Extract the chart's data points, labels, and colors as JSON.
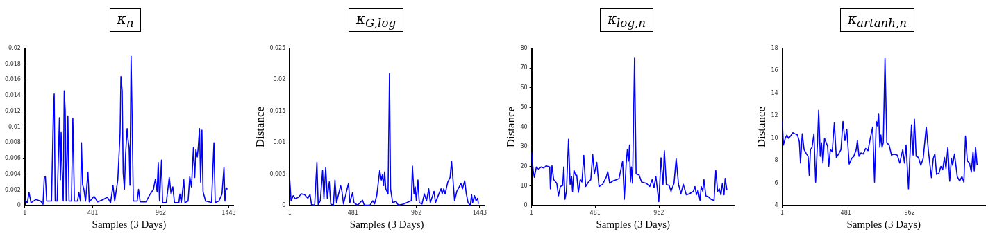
{
  "chart_data": [
    {
      "type": "line",
      "title": "κ$_{n}$",
      "xlabel": "Samples (3 Days)",
      "xlim": [
        1,
        1475
      ],
      "xticks": [
        1,
        481,
        962,
        1443
      ],
      "ylim": [
        0,
        0.02
      ],
      "yticks": [
        0,
        0.002,
        0.004,
        0.006,
        0.008,
        0.01,
        0.012,
        0.014,
        0.016,
        0.018,
        0.02
      ],
      "grid": false,
      "x": [
        1,
        18,
        30,
        44,
        78,
        112,
        129,
        138,
        146,
        155,
        189,
        202,
        208,
        215,
        229,
        238,
        245,
        252,
        257,
        264,
        272,
        279,
        286,
        293,
        305,
        313,
        330,
        340,
        351,
        373,
        383,
        394,
        401,
        409,
        418,
        430,
        447,
        456,
        490,
        516,
        555,
        584,
        607,
        624,
        636,
        658,
        674,
        680,
        689,
        696,
        705,
        713,
        724,
        731,
        738,
        744,
        752,
        759,
        768,
        795,
        805,
        816,
        858,
        884,
        910,
        924,
        936,
        944,
        953,
        967,
        975,
        1001,
        1022,
        1035,
        1047,
        1059,
        1090,
        1097,
        1107,
        1125,
        1133,
        1155,
        1167,
        1179,
        1193,
        1202,
        1210,
        1220,
        1227,
        1236,
        1244,
        1253,
        1261,
        1279,
        1304,
        1321,
        1338,
        1347,
        1373,
        1395,
        1409,
        1416,
        1424,
        1433
      ],
      "series": [
        {
          "color": "#0000ff",
          "values": [
            0.0007,
            0.0004,
            0.0017,
            0.0004,
            0.0008,
            0.0006,
            0.0002,
            0.0036,
            0.0037,
            0.0006,
            0.0006,
            0.0118,
            0.0142,
            0.0006,
            0.0006,
            0.0064,
            0.0112,
            0.0033,
            0.0093,
            0.0045,
            0.0006,
            0.0146,
            0.0121,
            0.0006,
            0.0114,
            0.0006,
            0.0006,
            0.0111,
            0.0006,
            0.0006,
            0.0017,
            0.0006,
            0.008,
            0.0027,
            0.0021,
            0.0006,
            0.0043,
            0.0005,
            0.0012,
            0.0005,
            0.0008,
            0.0011,
            0.0004,
            0.0026,
            0.0006,
            0.0033,
            0.0092,
            0.0164,
            0.0146,
            0.0042,
            0.0021,
            0.0065,
            0.0098,
            0.0083,
            0.0074,
            0.0026,
            0.019,
            0.0115,
            0.0006,
            0.0006,
            0.0021,
            0.0005,
            0.0005,
            0.0014,
            0.0021,
            0.0034,
            0.0018,
            0.0055,
            0.0006,
            0.0058,
            0.0004,
            0.0004,
            0.0036,
            0.0015,
            0.0024,
            0.0004,
            0.0004,
            0.0015,
            0.0004,
            0.0033,
            0.0004,
            0.0006,
            0.0037,
            0.0024,
            0.0074,
            0.0036,
            0.0071,
            0.0062,
            0.0074,
            0.0098,
            0.003,
            0.0096,
            0.0018,
            0.0006,
            0.0005,
            0.0004,
            0.008,
            0.0004,
            0.0006,
            0.0015,
            0.0049,
            0.0006,
            0.0023,
            0.0021
          ]
        }
      ]
    },
    {
      "type": "line",
      "title": "κ$_{G,log}$",
      "xlabel": "Samples (3 Days)",
      "ylabel": "Distance",
      "xlim": [
        1,
        1475
      ],
      "xticks": [
        1,
        481,
        962,
        1443
      ],
      "ylim": [
        0,
        0.025
      ],
      "yticks": [
        0,
        0.005,
        0.01,
        0.015,
        0.02,
        0.025
      ],
      "grid": false,
      "x": [
        1,
        11,
        27,
        44,
        70,
        87,
        112,
        138,
        155,
        166,
        190,
        207,
        217,
        233,
        250,
        260,
        274,
        286,
        301,
        312,
        332,
        344,
        356,
        387,
        397,
        409,
        447,
        457,
        478,
        488,
        516,
        553,
        567,
        610,
        631,
        644,
        661,
        684,
        696,
        704,
        713,
        721,
        730,
        747,
        758,
        766,
        782,
        807,
        825,
        867,
        910,
        924,
        932,
        944,
        953,
        962,
        974,
        984,
        1005,
        1022,
        1039,
        1056,
        1068,
        1096,
        1107,
        1133,
        1149,
        1158,
        1170,
        1180,
        1201,
        1218,
        1229,
        1240,
        1252,
        1269,
        1287,
        1300,
        1312,
        1329,
        1341,
        1355,
        1372,
        1381,
        1389,
        1403,
        1415,
        1427,
        1433
      ],
      "series": [
        {
          "color": "#0000ff",
          "values": [
            0.0041,
            0.0008,
            0.0016,
            0.0011,
            0.0014,
            0.0019,
            0.0018,
            0.0012,
            0.0018,
            0.0002,
            0.0001,
            0.0069,
            0.0002,
            0.0008,
            0.0056,
            0.0012,
            0.0061,
            0.0012,
            0.0038,
            0.0003,
            0.0001,
            0.0041,
            0.0005,
            0.0032,
            0.0023,
            0.0003,
            0.0036,
            0.0005,
            0.0021,
            0.0005,
            0.0001,
            0.0009,
            0.0001,
            0.0001,
            0.0008,
            0.0003,
            0.0016,
            0.0056,
            0.0041,
            0.0049,
            0.0032,
            0.0054,
            0.0027,
            0.0019,
            0.021,
            0.0027,
            0.0005,
            0.0007,
            0.0001,
            0.0003,
            0.0007,
            0.0008,
            0.0063,
            0.0019,
            0.003,
            0.0008,
            0.0041,
            0.0005,
            0.0003,
            0.0019,
            0.0008,
            0.0027,
            0.0005,
            0.0023,
            0.0005,
            0.0019,
            0.0027,
            0.0019,
            0.0027,
            0.0019,
            0.0038,
            0.0045,
            0.0071,
            0.0041,
            0.0008,
            0.0023,
            0.003,
            0.0036,
            0.0027,
            0.004,
            0.0019,
            0.0005,
            0.0001,
            0.0018,
            0.0005,
            0.0016,
            0.0008,
            0.0012,
            0.0003
          ]
        }
      ]
    },
    {
      "type": "line",
      "title": "κ$_{log,n}$",
      "xlabel": "Samples (3 Days)",
      "ylabel": "Distance",
      "xlim": [
        1,
        1533
      ],
      "xticks": [
        1,
        481,
        962
      ],
      "ylim": [
        0,
        80
      ],
      "yticks": [
        0,
        10,
        20,
        30,
        40,
        50,
        60,
        70,
        80
      ],
      "grid": false,
      "x": [
        1,
        13,
        22,
        37,
        54,
        72,
        93,
        111,
        138,
        143,
        155,
        168,
        191,
        204,
        218,
        236,
        244,
        253,
        264,
        280,
        292,
        303,
        310,
        321,
        333,
        342,
        354,
        368,
        381,
        395,
        409,
        430,
        448,
        462,
        475,
        493,
        510,
        537,
        564,
        576,
        590,
        617,
        644,
        661,
        688,
        701,
        715,
        724,
        733,
        740,
        747,
        754,
        763,
        778,
        790,
        813,
        831,
        866,
        893,
        911,
        925,
        939,
        961,
        978,
        993,
        1003,
        1018,
        1039,
        1053,
        1076,
        1092,
        1110,
        1128,
        1146,
        1169,
        1195,
        1222,
        1234,
        1245,
        1257,
        1272,
        1281,
        1293,
        1302,
        1316,
        1337,
        1355,
        1378,
        1391,
        1405,
        1418,
        1430,
        1441,
        1453,
        1462,
        1475
      ],
      "series": [
        {
          "color": "#0000ff",
          "values": [
            27.4,
            18,
            14.5,
            19.7,
            18.6,
            19.7,
            19.2,
            20.3,
            19.7,
            8.6,
            20.3,
            13.3,
            11.5,
            5.1,
            9.8,
            10.3,
            19.7,
            3.3,
            7.4,
            33.8,
            10.9,
            15,
            7.4,
            18,
            15.6,
            15.6,
            6.8,
            13.3,
            12.1,
            25.6,
            9.8,
            12.1,
            13.3,
            26.2,
            16.2,
            22.1,
            9.8,
            10.9,
            14.5,
            17.4,
            11.5,
            12.7,
            13.3,
            13.9,
            22.7,
            3.3,
            21.5,
            28.6,
            22.7,
            30.9,
            12.1,
            19.7,
            11.5,
            75,
            16.2,
            15.6,
            12.1,
            11.5,
            9.8,
            13.3,
            9.2,
            15,
            2.1,
            24.4,
            10.9,
            28,
            10.9,
            10.3,
            7.4,
            11.5,
            23.9,
            10.9,
            6.2,
            10.9,
            5.6,
            6.2,
            7.4,
            9.8,
            5.6,
            8,
            2.7,
            9.8,
            7.4,
            13.3,
            5.1,
            4.5,
            3.3,
            2.7,
            18,
            7.4,
            8.6,
            5.6,
            11.5,
            5.6,
            13.9,
            8
          ]
        }
      ]
    },
    {
      "type": "line",
      "title": "κ$_{artanh,n}$",
      "xlabel": "Samples (3 Days)",
      "ylabel": "Distance",
      "xlim": [
        1,
        1532
      ],
      "xticks": [
        1,
        481,
        962
      ],
      "ylim": [
        4,
        18
      ],
      "yticks": [
        4,
        6,
        8,
        10,
        12,
        14,
        16,
        18
      ],
      "grid": false,
      "x": [
        1,
        10,
        24,
        36,
        48,
        63,
        81,
        98,
        116,
        130,
        139,
        152,
        166,
        184,
        196,
        205,
        214,
        226,
        240,
        253,
        267,
        276,
        288,
        297,
        308,
        320,
        333,
        343,
        352,
        364,
        378,
        394,
        409,
        426,
        444,
        459,
        474,
        488,
        506,
        524,
        541,
        559,
        568,
        580,
        595,
        612,
        630,
        648,
        665,
        683,
        697,
        710,
        719,
        728,
        737,
        745,
        754,
        763,
        776,
        790,
        807,
        825,
        843,
        869,
        887,
        910,
        923,
        935,
        953,
        962,
        976,
        988,
        998,
        1011,
        1028,
        1046,
        1064,
        1087,
        1104,
        1126,
        1140,
        1152,
        1165,
        1183,
        1197,
        1211,
        1224,
        1236,
        1250,
        1264,
        1277,
        1286,
        1300,
        1321,
        1339,
        1356,
        1371,
        1383,
        1397,
        1413,
        1427,
        1440,
        1449,
        1459,
        1471
      ],
      "series": [
        {
          "color": "#0000ff",
          "values": [
            11.6,
            9.4,
            10,
            10.3,
            10,
            10.2,
            10.5,
            10.4,
            10.3,
            9.7,
            7.8,
            10.4,
            9,
            8.6,
            8.4,
            6.7,
            9,
            9.2,
            10.4,
            6.1,
            9.6,
            12.5,
            8.4,
            9.6,
            7.8,
            10,
            9.6,
            9.3,
            7.5,
            9,
            8.8,
            11.4,
            8.3,
            8.6,
            9,
            11.5,
            9.8,
            10.8,
            7.7,
            8.2,
            8.4,
            9,
            9.8,
            8.4,
            8.7,
            8.6,
            9.1,
            8.9,
            10,
            11,
            6.1,
            11.5,
            11.1,
            12.2,
            9.2,
            10.3,
            9.2,
            9.6,
            17.1,
            9.6,
            9.4,
            8.5,
            8.6,
            8.5,
            7.8,
            9,
            7.8,
            9.4,
            5.5,
            8,
            11.2,
            8.5,
            11.7,
            8.4,
            8.3,
            7.6,
            8.2,
            11,
            8.8,
            6.5,
            8.2,
            8.6,
            6.8,
            6.9,
            7.5,
            7.2,
            8.3,
            7.3,
            9.2,
            6.2,
            8.2,
            7.6,
            8.6,
            6.6,
            6.2,
            6.6,
            6.1,
            10.2,
            8,
            7.8,
            7,
            8.8,
            7.1,
            9.2,
            7.6
          ]
        }
      ]
    }
  ]
}
